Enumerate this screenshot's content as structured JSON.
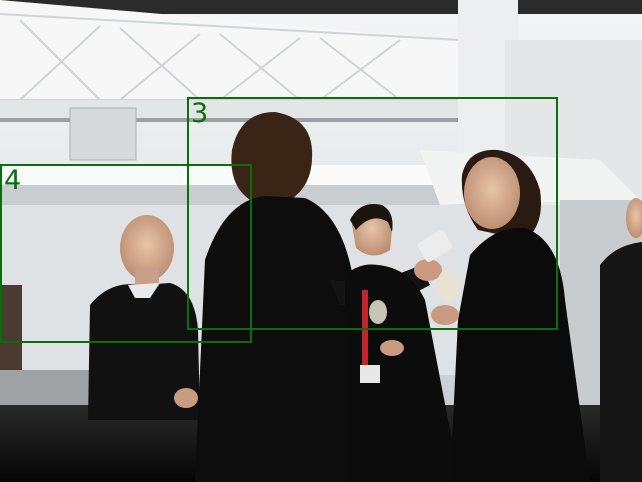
{
  "scene": {
    "description_colors": {
      "box_stroke": "#0a6e0a",
      "wall": "#e9ecef",
      "clothing": "#0c0c0c"
    }
  },
  "annotations": [
    {
      "id": "box-3",
      "label": "3"
    },
    {
      "id": "box-4",
      "label": "4"
    }
  ]
}
